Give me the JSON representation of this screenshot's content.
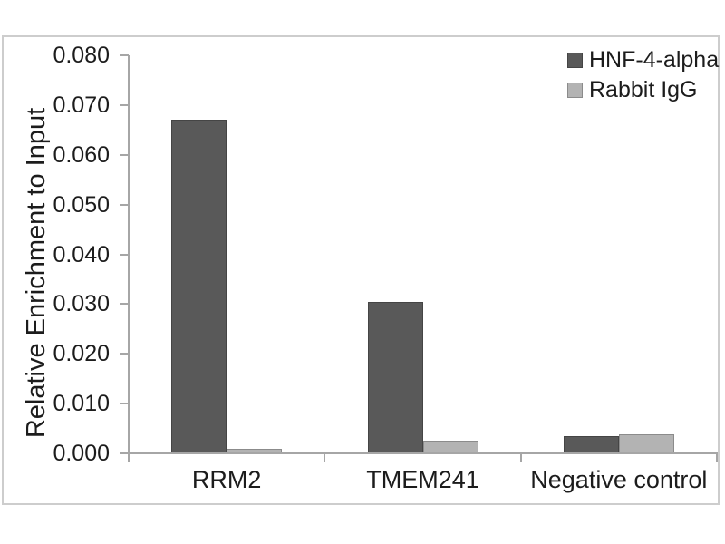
{
  "chart_data": {
    "type": "bar",
    "title": "",
    "xlabel": "",
    "ylabel": "Relative Enrichment to Input",
    "categories": [
      "RRM2",
      "TMEM241",
      "Negative control"
    ],
    "series": [
      {
        "name": "HNF-4-alpha",
        "color": "#595959",
        "values": [
          0.067,
          0.0305,
          0.0035
        ]
      },
      {
        "name": "Rabbit IgG",
        "color": "#b3b3b3",
        "values": [
          0.001,
          0.0026,
          0.0039
        ]
      }
    ],
    "ylim": [
      0,
      0.08
    ],
    "ytick_step": 0.01,
    "ytick_labels": [
      "0.000",
      "0.010",
      "0.020",
      "0.030",
      "0.040",
      "0.050",
      "0.060",
      "0.070",
      "0.080"
    ],
    "grid": false,
    "legend_position": "top-right",
    "axis_color": "#a6a6a6",
    "frame_color": "#cdcdcd",
    "text_color": "#1c1c1c"
  }
}
